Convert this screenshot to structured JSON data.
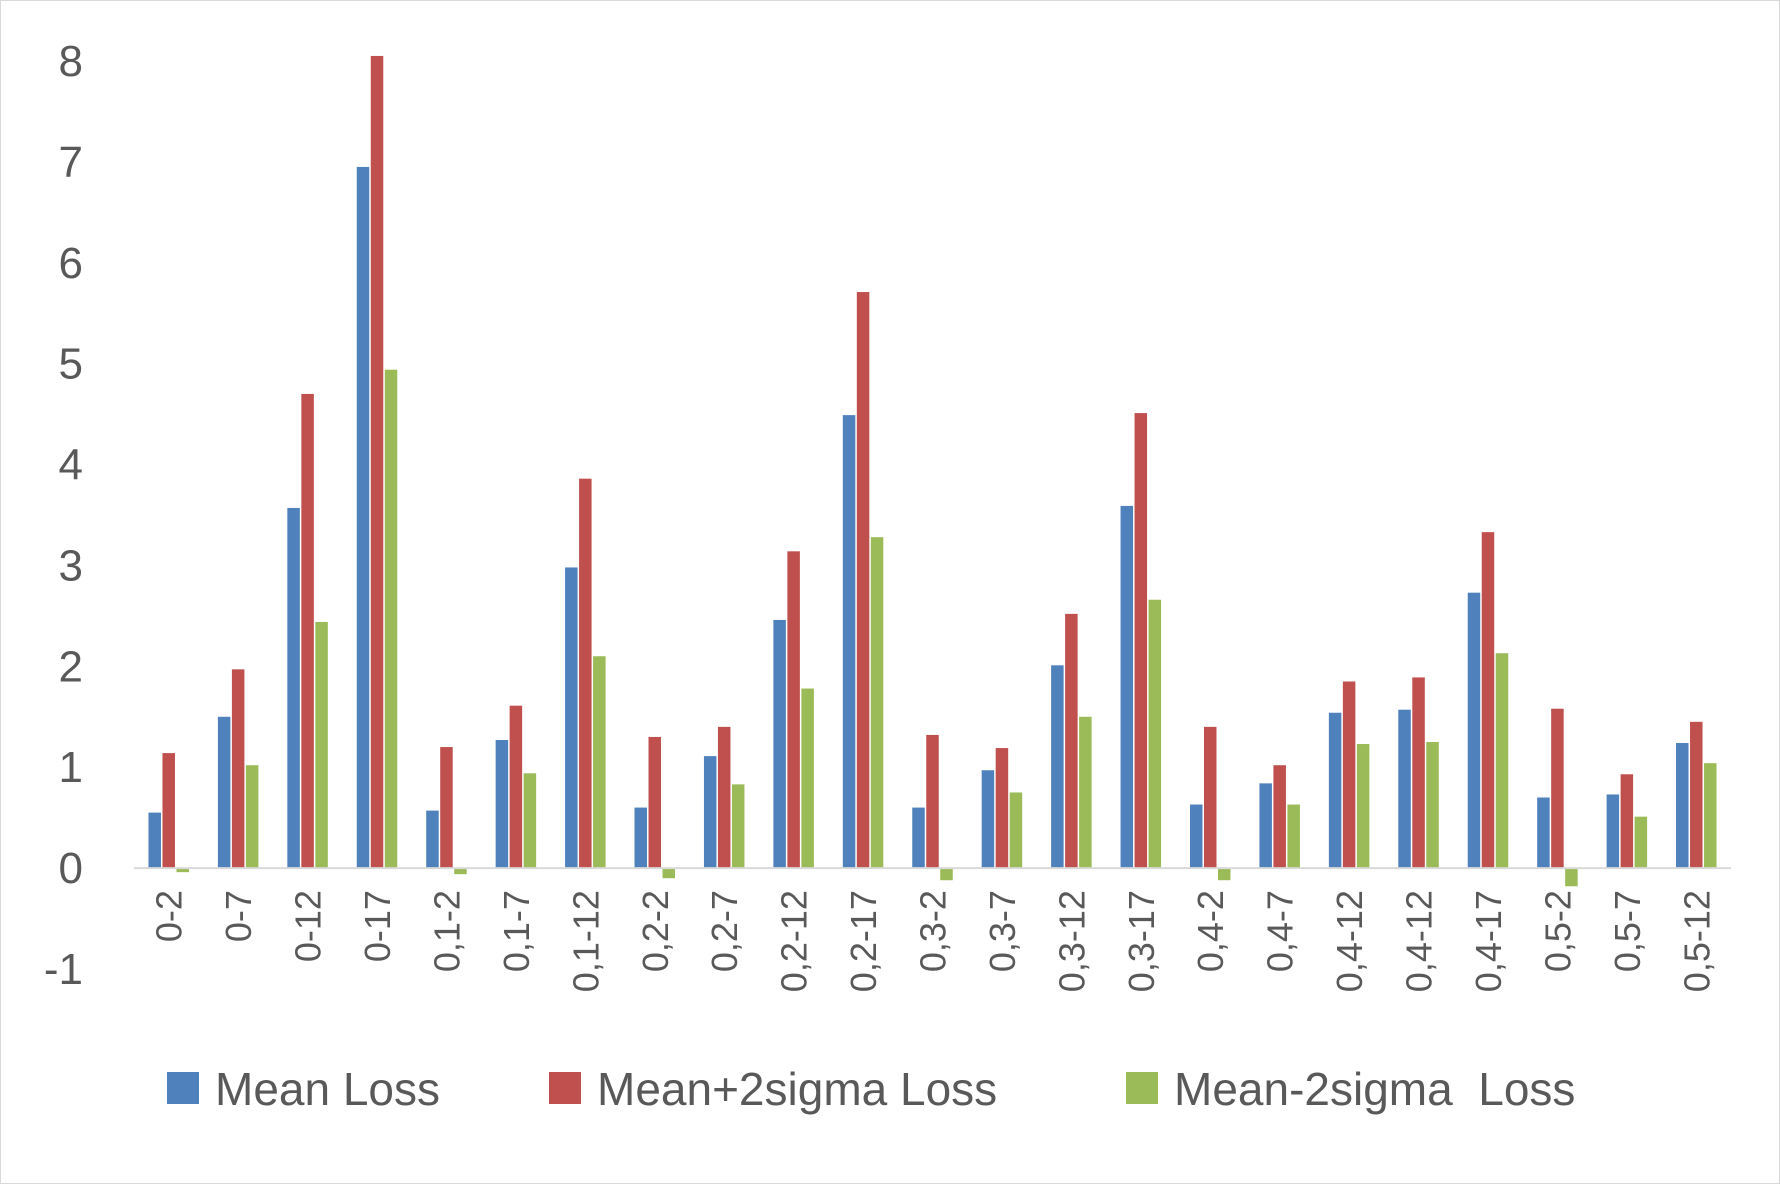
{
  "chart_data": {
    "type": "bar",
    "title": "",
    "xlabel": "",
    "ylabel": "",
    "ylim": [
      -1,
      8
    ],
    "yticks": [
      -1,
      0,
      1,
      2,
      3,
      4,
      5,
      6,
      7,
      8
    ],
    "grid": false,
    "legend_position": "bottom",
    "categories": [
      "0-2",
      "0-7",
      "0-12",
      "0-17",
      "0,1-2",
      "0,1-7",
      "0,1-12",
      "0,2-2",
      "0,2-7",
      "0,2-12",
      "0,2-17",
      "0,3-2",
      "0,3-7",
      "0,3-12",
      "0,3-17",
      "0,4-2",
      "0,4-7",
      "0,4-12",
      "0,4-12",
      "0,4-17",
      "0,5-2",
      "0,5-7",
      "0,5-12"
    ],
    "series": [
      {
        "name": "Mean Loss",
        "color": "#4f81bd",
        "values": [
          0.55,
          1.5,
          3.57,
          6.95,
          0.57,
          1.27,
          2.98,
          0.6,
          1.11,
          2.46,
          4.49,
          0.6,
          0.97,
          2.01,
          3.59,
          0.63,
          0.84,
          1.54,
          1.57,
          2.73,
          0.7,
          0.73,
          1.24
        ]
      },
      {
        "name": "Mean+2sigma Loss",
        "color": "#c0504d",
        "values": [
          1.14,
          1.97,
          4.7,
          8.05,
          1.2,
          1.61,
          3.86,
          1.3,
          1.4,
          3.14,
          5.71,
          1.32,
          1.19,
          2.52,
          4.51,
          1.4,
          1.02,
          1.85,
          1.89,
          3.33,
          1.58,
          0.93,
          1.45
        ]
      },
      {
        "name": "Mean-2sigma  Loss",
        "color": "#9bbb59",
        "values": [
          -0.04,
          1.02,
          2.44,
          4.94,
          -0.06,
          0.94,
          2.1,
          -0.1,
          0.83,
          1.78,
          3.28,
          -0.12,
          0.75,
          1.5,
          2.66,
          -0.12,
          0.63,
          1.23,
          1.25,
          2.13,
          -0.18,
          0.51,
          1.04
        ]
      }
    ]
  }
}
